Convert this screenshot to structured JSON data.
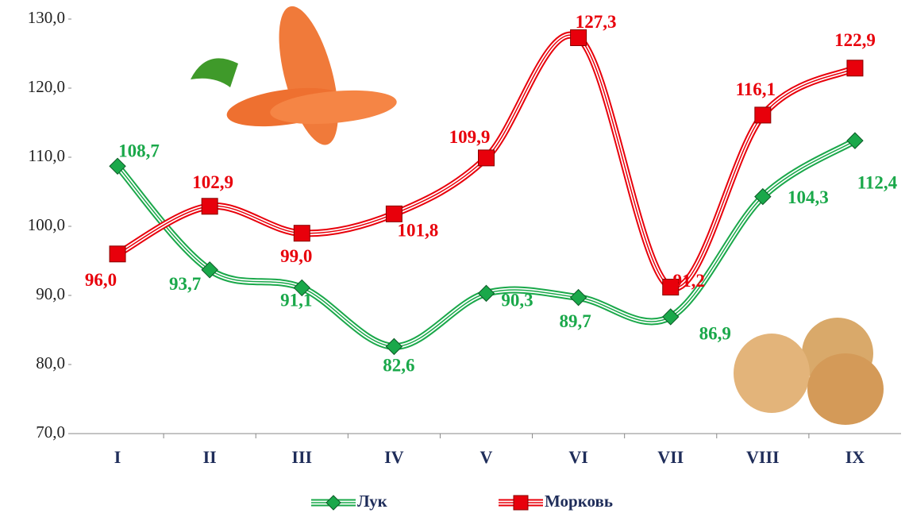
{
  "chart_data": {
    "type": "line",
    "categories": [
      "I",
      "II",
      "III",
      "IV",
      "V",
      "VI",
      "VII",
      "VIII",
      "IX"
    ],
    "series": [
      {
        "name": "Лук",
        "color": "#1aa84a",
        "marker": "diamond",
        "values": [
          108.7,
          93.7,
          91.1,
          82.6,
          90.3,
          89.7,
          86.9,
          104.3,
          112.4
        ],
        "value_labels": [
          "108,7",
          "93,7",
          "91,1",
          "82,6",
          "90,3",
          "89,7",
          "86,9",
          "104,3",
          "112,4"
        ]
      },
      {
        "name": "Морковь",
        "color": "#e8000b",
        "marker": "square",
        "values": [
          96.0,
          102.9,
          99.0,
          101.8,
          109.9,
          127.3,
          91.2,
          116.1,
          122.9
        ],
        "value_labels": [
          "96,0",
          "102,9",
          "99,0",
          "101,8",
          "109,9",
          "127,3",
          "91,2",
          "116,1",
          "122,9"
        ]
      }
    ],
    "ylim": [
      70,
      130
    ],
    "yticks": [
      {
        "value": 70,
        "label": "70,0"
      },
      {
        "value": 80,
        "label": "80,0"
      },
      {
        "value": 90,
        "label": "90,0"
      },
      {
        "value": 100,
        "label": "100,0"
      },
      {
        "value": 110,
        "label": "110,0"
      },
      {
        "value": 120,
        "label": "120,0"
      },
      {
        "value": 130,
        "label": "130,0"
      }
    ],
    "legend": "bottom"
  }
}
